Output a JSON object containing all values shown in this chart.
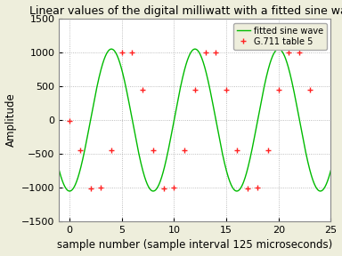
{
  "title": "Linear values of the digital milliwatt with a fitted sine wave",
  "xlabel": "sample number (sample interval 125 microseconds)",
  "ylabel": "Amplitude",
  "legend_label_data": "G.711 table 5",
  "legend_label_sine": "fitted sine wave",
  "bg_color": "#eeeedc",
  "plot_bg_color": "#ffffff",
  "line_color": "#00bb00",
  "marker_color": "#ff2222",
  "ylim": [
    -1500,
    1500
  ],
  "xlim": [
    -1,
    25
  ],
  "xticks": [
    0,
    5,
    10,
    15,
    20,
    25
  ],
  "yticks": [
    -1500,
    -1000,
    -500,
    0,
    500,
    1000,
    1500
  ],
  "grid_color": "#aaaaaa",
  "title_fontsize": 9,
  "axis_label_fontsize": 8.5,
  "tick_fontsize": 8,
  "g711_samples_x": [
    0,
    1,
    2,
    3,
    4,
    5,
    6,
    7,
    8,
    9,
    10,
    11,
    12,
    13,
    14,
    15,
    16,
    17,
    18,
    19,
    20,
    21,
    22,
    23
  ],
  "g711_samples_y": [
    -8,
    -449,
    -1007,
    -999,
    -449,
    1007,
    999,
    449,
    -449,
    -1007,
    -999,
    -449,
    449,
    1007,
    999,
    449,
    -449,
    -1007,
    -999,
    -449,
    449,
    1007,
    999,
    449
  ],
  "sine_amplitude": 1052.0,
  "sine_freq_ratio": 0.125,
  "sine_phase": -1.5748,
  "num_sine_points": 1000
}
